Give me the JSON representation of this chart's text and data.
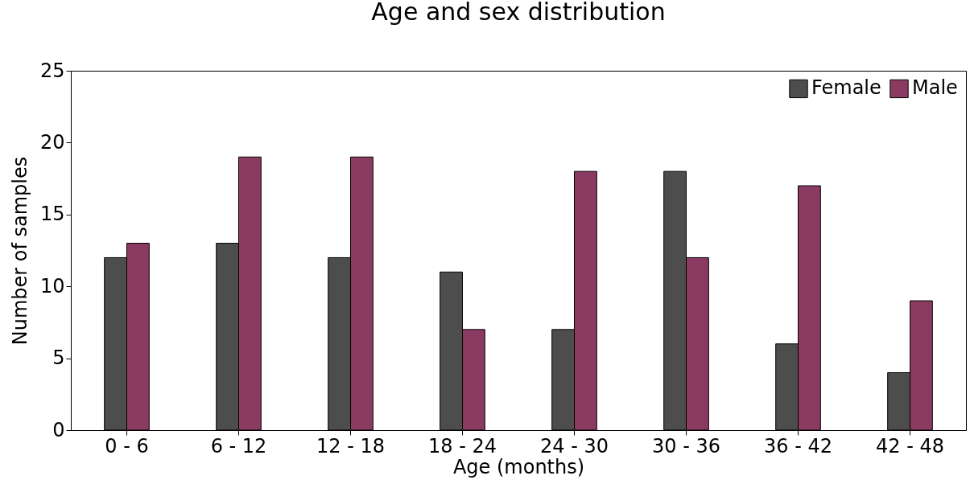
{
  "chart_data": {
    "type": "bar",
    "title": "Age and sex distribution",
    "xlabel": "Age (months)",
    "ylabel": "Number of samples",
    "categories": [
      "0 - 6",
      "6 - 12",
      "12 - 18",
      "18 - 24",
      "24 - 30",
      "30 - 36",
      "36 - 42",
      "42 - 48"
    ],
    "series": [
      {
        "name": "Female",
        "color": "#4d4d4d",
        "values": [
          12,
          13,
          12,
          11,
          7,
          18,
          6,
          4
        ]
      },
      {
        "name": "Male",
        "color": "#8b3a62",
        "values": [
          13,
          19,
          19,
          7,
          18,
          12,
          17,
          9
        ]
      }
    ],
    "ylim": [
      0,
      25
    ],
    "yticks": [
      0,
      5,
      10,
      15,
      20,
      25
    ],
    "grid": false,
    "legend": "top right"
  }
}
